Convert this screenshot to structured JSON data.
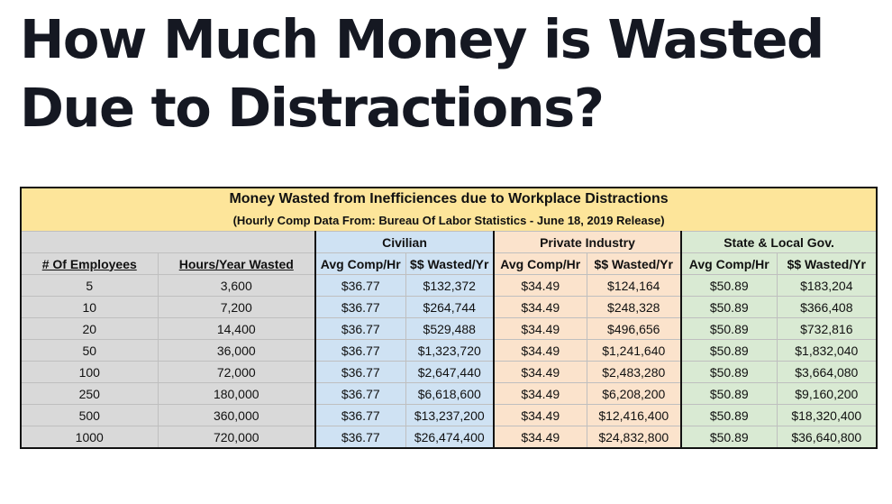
{
  "page_title_lines": [
    "How Much Money is Wasted",
    "Due to Distractions?"
  ],
  "table": {
    "title": "Money Wasted from Inefficiences due to Workplace Distractions",
    "subtitle": "(Hourly Comp Data From: Bureau Of Labor Statistics - June 18, 2019 Release)",
    "groups": [
      "Civilian",
      "Private Industry",
      "State & Local Gov."
    ],
    "columns": [
      "# Of Employees",
      "Hours/Year Wasted",
      "Avg Comp/Hr",
      "$$ Wasted/Yr",
      "Avg Comp/Hr",
      "$$ Wasted/Yr",
      "Avg Comp/Hr",
      "$$ Wasted/Yr"
    ],
    "rows": [
      [
        "5",
        "3,600",
        "$36.77",
        "$132,372",
        "$34.49",
        "$124,164",
        "$50.89",
        "$183,204"
      ],
      [
        "10",
        "7,200",
        "$36.77",
        "$264,744",
        "$34.49",
        "$248,328",
        "$50.89",
        "$366,408"
      ],
      [
        "20",
        "14,400",
        "$36.77",
        "$529,488",
        "$34.49",
        "$496,656",
        "$50.89",
        "$732,816"
      ],
      [
        "50",
        "36,000",
        "$36.77",
        "$1,323,720",
        "$34.49",
        "$1,241,640",
        "$50.89",
        "$1,832,040"
      ],
      [
        "100",
        "72,000",
        "$36.77",
        "$2,647,440",
        "$34.49",
        "$2,483,280",
        "$50.89",
        "$3,664,080"
      ],
      [
        "250",
        "180,000",
        "$36.77",
        "$6,618,600",
        "$34.49",
        "$6,208,200",
        "$50.89",
        "$9,160,200"
      ],
      [
        "500",
        "360,000",
        "$36.77",
        "$13,237,200",
        "$34.49",
        "$12,416,400",
        "$50.89",
        "$18,320,400"
      ],
      [
        "1000",
        "720,000",
        "$36.77",
        "$26,474,400",
        "$34.49",
        "$24,832,800",
        "$50.89",
        "$36,640,800"
      ]
    ]
  },
  "colors": {
    "title_band": "#fde59a",
    "gray": "#d9d9d9",
    "civilian": "#cfe2f3",
    "private": "#fbe3cc",
    "state": "#d9ead3"
  }
}
